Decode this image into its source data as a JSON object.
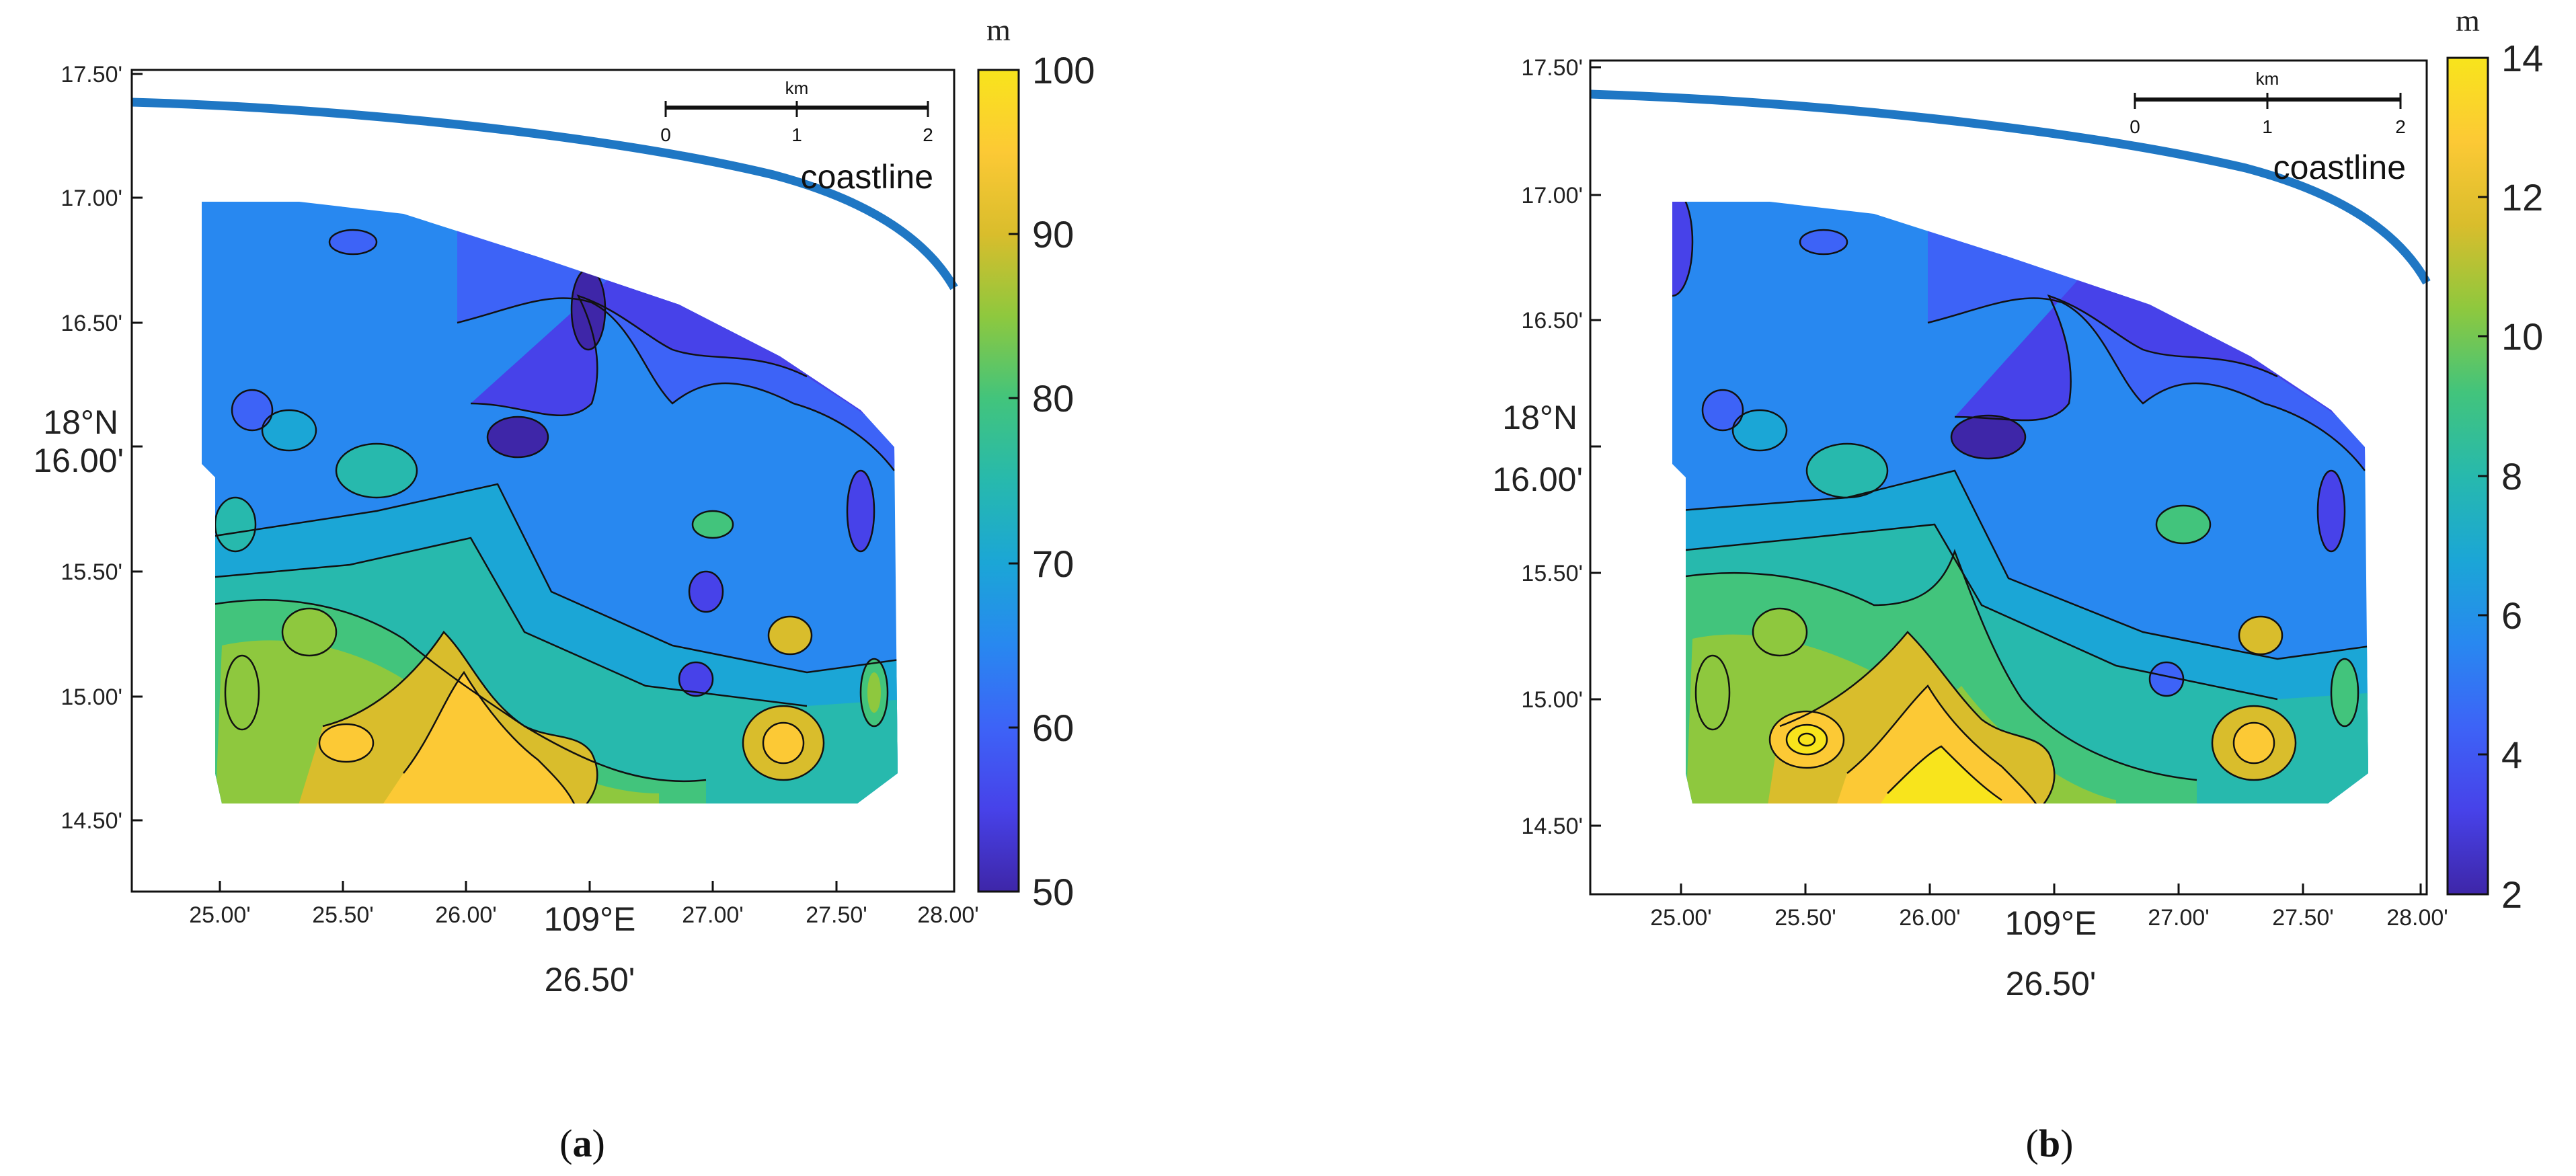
{
  "panels": [
    {
      "id": "a",
      "caption_open": "(",
      "caption_letter": "a",
      "caption_close": ")",
      "y_ticks": [
        "17.50'",
        "17.00'",
        "16.50'",
        "15.50'",
        "15.00'",
        "14.50'"
      ],
      "y_major_top": "18°N",
      "y_major_bottom": "16.00'",
      "x_ticks": [
        "25.00'",
        "25.50'",
        "26.00'",
        "27.00'",
        "27.50'",
        "28.00'"
      ],
      "x_major_top": "109°E",
      "x_major_bottom": "26.50'",
      "colorbar_unit": "m",
      "colorbar_ticks": [
        "100",
        "90",
        "80",
        "70",
        "60",
        "50"
      ],
      "scale_unit": "km",
      "scale_labels": [
        "0",
        "1",
        "2"
      ],
      "coastline_label": "coastline"
    },
    {
      "id": "b",
      "caption_open": "(",
      "caption_letter": "b",
      "caption_close": ")",
      "y_ticks": [
        "17.50'",
        "17.00'",
        "16.50'",
        "15.50'",
        "15.00'",
        "14.50'"
      ],
      "y_major_top": "18°N",
      "y_major_bottom": "16.00'",
      "x_ticks": [
        "25.00'",
        "25.50'",
        "26.00'",
        "27.00'",
        "27.50'",
        "28.00'"
      ],
      "x_major_top": "109°E",
      "x_major_bottom": "26.50'",
      "colorbar_unit": "m",
      "colorbar_ticks": [
        "14",
        "12",
        "10",
        "8",
        "6",
        "4",
        "2"
      ],
      "scale_unit": "km",
      "scale_labels": [
        "0",
        "1",
        "2"
      ],
      "coastline_label": "coastline"
    }
  ],
  "colors": {
    "coastline": "#1f77c4",
    "colormap": [
      "#3e26a8",
      "#4742e9",
      "#3d63f7",
      "#2888f0",
      "#1ba6d6",
      "#27b9ad",
      "#42c47c",
      "#8ec83e",
      "#d9bd2c",
      "#fcc935",
      "#f8e41c"
    ]
  }
}
